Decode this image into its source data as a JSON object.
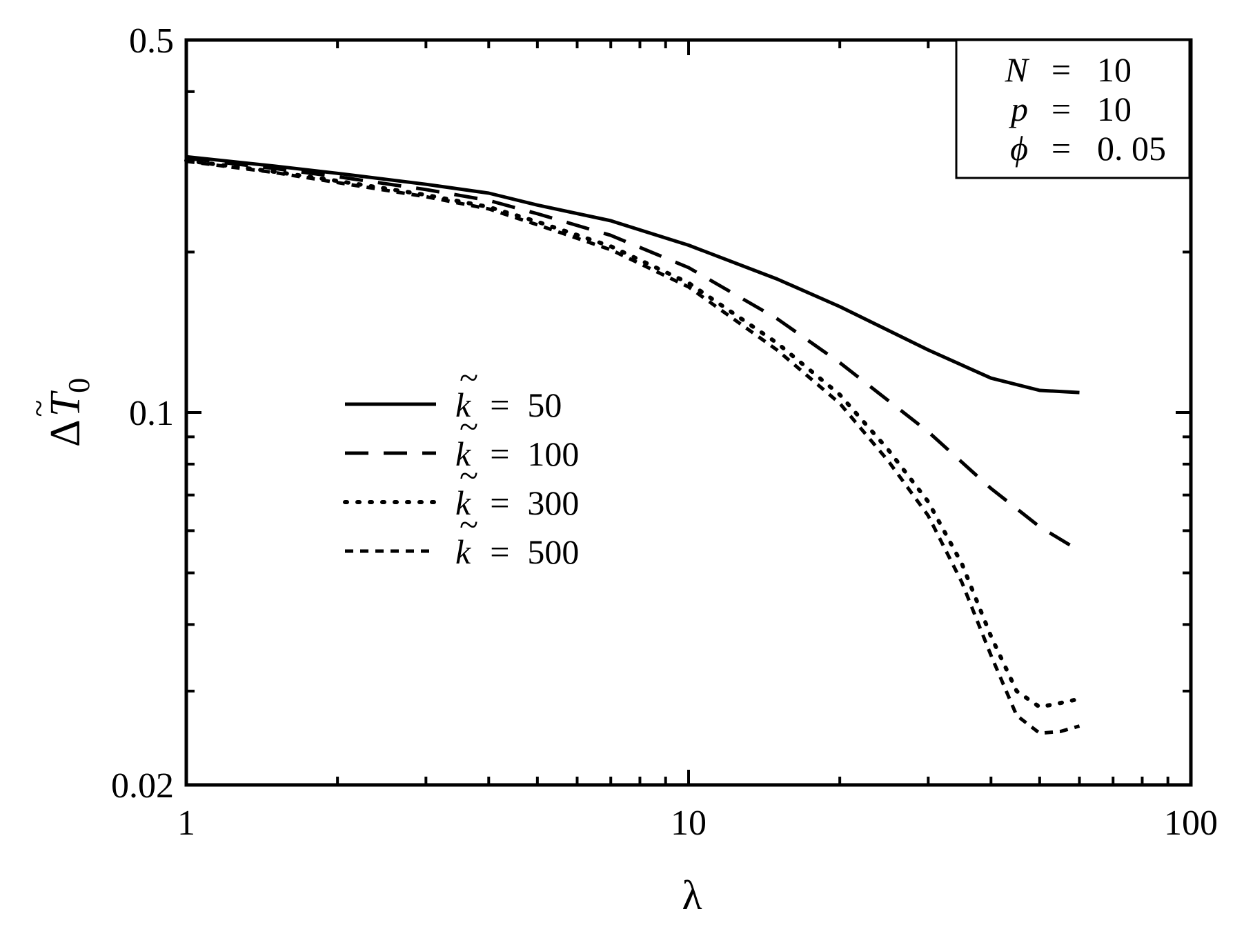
{
  "chart_data": {
    "type": "line",
    "xlabel": "λ",
    "ylabel": {
      "delta": "Δ",
      "symbol": "T",
      "accent": "~",
      "subscript": "0"
    },
    "x_scale": "log",
    "y_scale": "log",
    "xlim": [
      1,
      100
    ],
    "ylim": [
      0.02,
      0.5
    ],
    "x_ticks": [
      {
        "value": 1,
        "label": "1"
      },
      {
        "value": 10,
        "label": "10"
      },
      {
        "value": 100,
        "label": "100"
      }
    ],
    "y_ticks": [
      {
        "value": 0.5,
        "label": "0.5"
      },
      {
        "value": 0.1,
        "label": "0.1"
      },
      {
        "value": 0.02,
        "label": "0.02"
      }
    ],
    "x_minor_ticks": [
      2,
      3,
      4,
      5,
      6,
      7,
      8,
      9,
      20,
      30,
      40,
      50,
      60,
      70,
      80,
      90
    ],
    "y_minor_ticks": [
      0.03,
      0.04,
      0.05,
      0.06,
      0.07,
      0.08,
      0.09,
      0.2,
      0.3,
      0.4
    ],
    "grid": false,
    "parameters": [
      {
        "symbol": "N",
        "eq": "=",
        "value": "10"
      },
      {
        "symbol": "p",
        "eq": "=",
        "value": "10"
      },
      {
        "symbol": "ϕ",
        "eq": "=",
        "value": "0. 05"
      }
    ],
    "legend_placement": "center-left",
    "series": [
      {
        "name": "k̃ = 50",
        "symbol": "k",
        "eq": "=",
        "value": "50",
        "dash": "solid",
        "x": [
          1,
          1.5,
          2,
          3,
          4,
          5,
          7,
          10,
          15,
          20,
          30,
          40,
          50,
          60
        ],
        "y": [
          0.302,
          0.29,
          0.281,
          0.268,
          0.258,
          0.245,
          0.229,
          0.206,
          0.178,
          0.158,
          0.131,
          0.116,
          0.11,
          0.109
        ]
      },
      {
        "name": "k̃ = 100",
        "symbol": "k",
        "eq": "=",
        "value": "100",
        "dash": "long-dash",
        "x": [
          1,
          1.5,
          2,
          3,
          4,
          5,
          7,
          10,
          15,
          20,
          30,
          40,
          50,
          60
        ],
        "y": [
          0.3,
          0.287,
          0.277,
          0.262,
          0.25,
          0.236,
          0.215,
          0.187,
          0.15,
          0.124,
          0.092,
          0.072,
          0.061,
          0.055
        ]
      },
      {
        "name": "k̃ = 300",
        "symbol": "k",
        "eq": "=",
        "value": "300",
        "dash": "dotted",
        "x": [
          1,
          1.5,
          2,
          3,
          4,
          5,
          7,
          10,
          15,
          20,
          25,
          30,
          35,
          40,
          45,
          50,
          55,
          60
        ],
        "y": [
          0.297,
          0.283,
          0.272,
          0.256,
          0.243,
          0.228,
          0.205,
          0.175,
          0.135,
          0.108,
          0.085,
          0.068,
          0.052,
          0.038,
          0.03,
          0.028,
          0.0285,
          0.029
        ]
      },
      {
        "name": "k̃ = 500",
        "symbol": "k",
        "eq": "=",
        "value": "500",
        "dash": "short-dash",
        "x": [
          1,
          1.5,
          2,
          3,
          4,
          5,
          7,
          10,
          15,
          20,
          25,
          30,
          35,
          40,
          45,
          50,
          55,
          60
        ],
        "y": [
          0.296,
          0.282,
          0.27,
          0.254,
          0.241,
          0.225,
          0.202,
          0.172,
          0.131,
          0.104,
          0.081,
          0.064,
          0.048,
          0.035,
          0.027,
          0.025,
          0.0252,
          0.0258
        ]
      }
    ]
  }
}
